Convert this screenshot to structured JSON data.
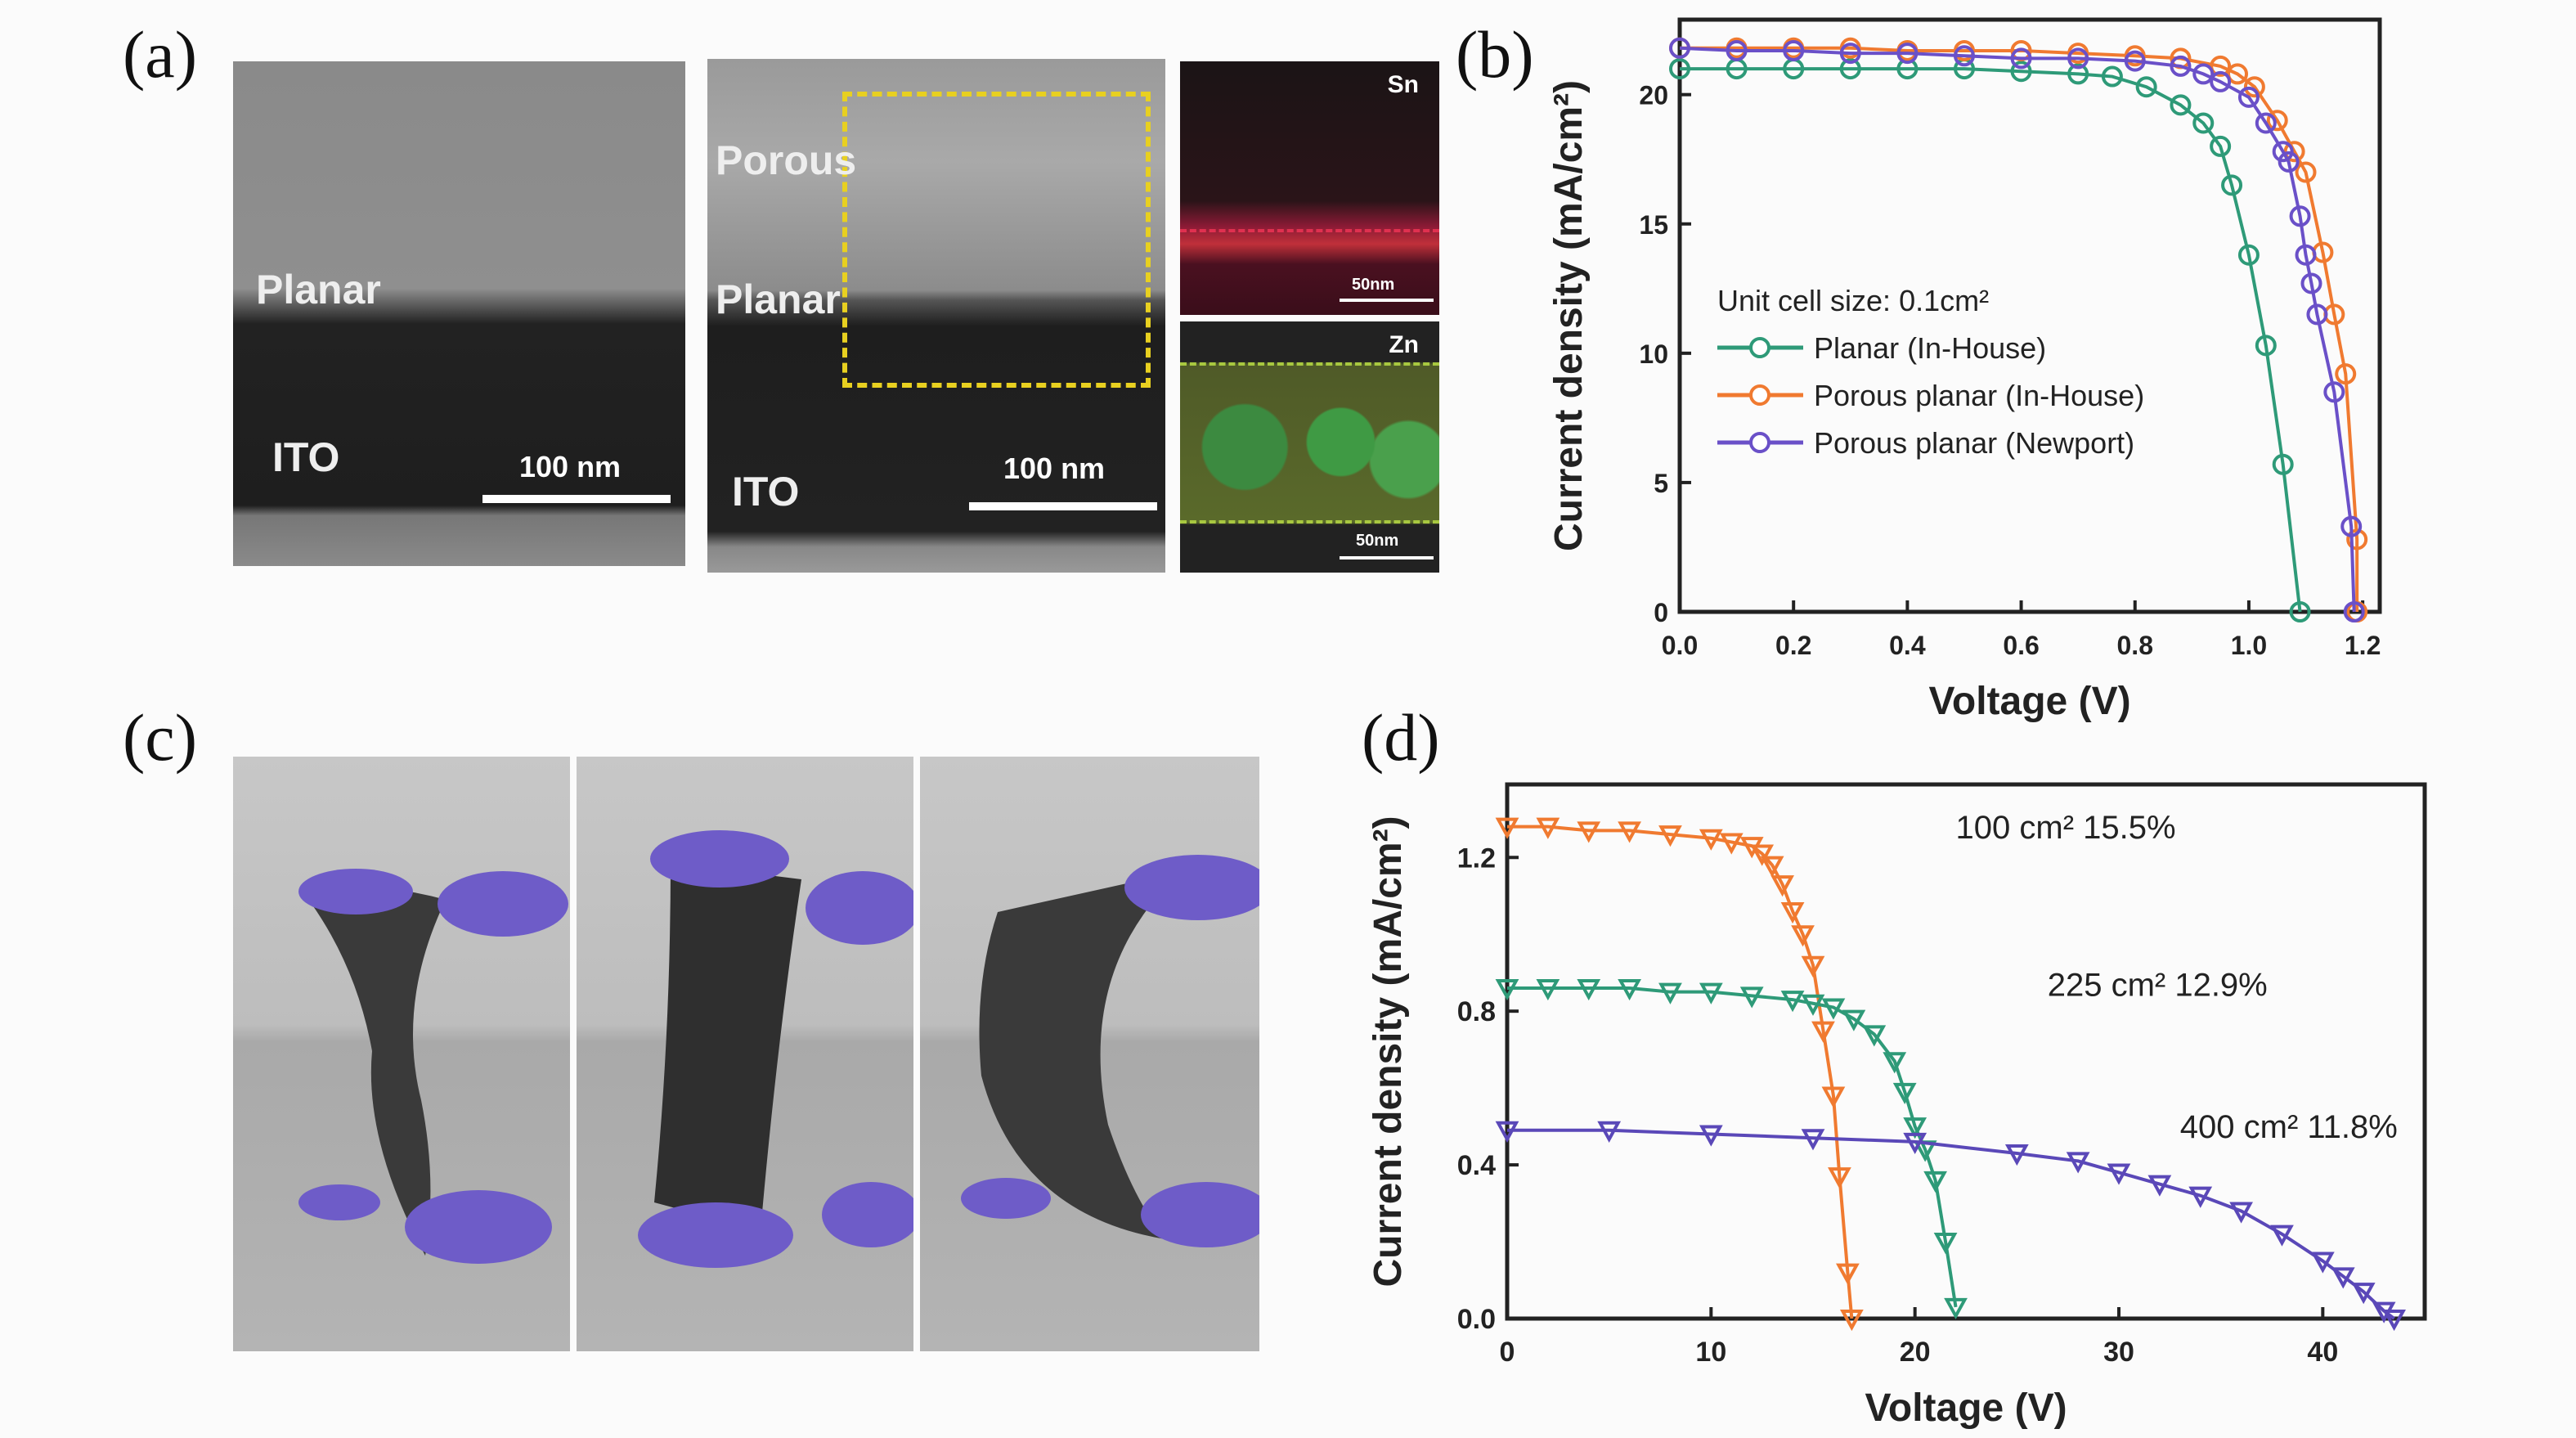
{
  "panels": {
    "a": "(a)",
    "b": "(b)",
    "c": "(c)",
    "d": "(d)"
  },
  "panel_a": {
    "image1": {
      "layer_top": "Planar",
      "layer_bottom": "ITO",
      "scale_bar": "100 nm"
    },
    "image2": {
      "layer_porous": "Porous",
      "layer_top": "Planar",
      "layer_bottom": "ITO",
      "scale_bar": "100 nm",
      "box_color": "#e8d020"
    },
    "map_sn": {
      "element": "Sn",
      "scale_bar": "50nm",
      "color": "#c0303a"
    },
    "map_zn": {
      "element": "Zn",
      "scale_bar": "50nm",
      "color": "#3f9a44"
    }
  },
  "chart_data": [
    {
      "type": "line",
      "panel": "(b)",
      "xlabel": "Voltage (V)",
      "ylabel": "Current density (mA/cm²)",
      "xlim": [
        0,
        1.23
      ],
      "ylim": [
        0,
        22.9
      ],
      "xticks": [
        "0.0",
        "0.2",
        "0.4",
        "0.6",
        "0.8",
        "1.0",
        "1.2"
      ],
      "yticks": [
        "0",
        "5",
        "10",
        "15",
        "20"
      ],
      "legend_title": "Unit cell size: 0.1cm²",
      "legend_position": "center",
      "marker": "open-circle",
      "series": [
        {
          "name": "Planar (In-House)",
          "color": "#2e9a78",
          "x": [
            0,
            0.1,
            0.2,
            0.3,
            0.4,
            0.5,
            0.6,
            0.7,
            0.76,
            0.82,
            0.88,
            0.92,
            0.95,
            0.97,
            1.0,
            1.03,
            1.06,
            1.09
          ],
          "y": [
            21.0,
            21.0,
            21.0,
            21.0,
            21.0,
            21.0,
            20.9,
            20.8,
            20.7,
            20.3,
            19.6,
            18.9,
            18.0,
            16.5,
            13.8,
            10.3,
            5.7,
            0
          ]
        },
        {
          "name": "Porous planar (In-House)",
          "color": "#f07a30",
          "x": [
            0,
            0.1,
            0.2,
            0.3,
            0.4,
            0.5,
            0.6,
            0.7,
            0.8,
            0.88,
            0.95,
            0.98,
            1.01,
            1.05,
            1.08,
            1.1,
            1.13,
            1.15,
            1.17,
            1.19,
            1.19
          ],
          "y": [
            21.8,
            21.8,
            21.8,
            21.8,
            21.7,
            21.7,
            21.7,
            21.6,
            21.5,
            21.4,
            21.1,
            20.8,
            20.3,
            19.0,
            17.8,
            17.0,
            13.9,
            11.5,
            9.2,
            2.8,
            0
          ]
        },
        {
          "name": "Porous planar (Newport)",
          "color": "#6a50c8",
          "x": [
            0,
            0.1,
            0.2,
            0.3,
            0.4,
            0.5,
            0.6,
            0.7,
            0.8,
            0.88,
            0.92,
            0.95,
            1.0,
            1.03,
            1.06,
            1.07,
            1.09,
            1.1,
            1.11,
            1.12,
            1.15,
            1.18,
            1.185
          ],
          "y": [
            21.8,
            21.7,
            21.7,
            21.6,
            21.6,
            21.5,
            21.4,
            21.4,
            21.3,
            21.1,
            20.8,
            20.5,
            19.9,
            18.9,
            17.8,
            17.4,
            15.3,
            13.8,
            12.7,
            11.5,
            8.5,
            3.3,
            0
          ]
        }
      ]
    },
    {
      "type": "line",
      "panel": "(d)",
      "xlabel": "Voltage (V)",
      "ylabel": "Current density (mA/cm²)",
      "xlim": [
        0,
        45
      ],
      "ylim": [
        0,
        1.39
      ],
      "xticks": [
        "0",
        "10",
        "20",
        "30",
        "40"
      ],
      "yticks": [
        "0.0",
        "0.4",
        "0.8",
        "1.2"
      ],
      "marker": "open-triangle-down",
      "series": [
        {
          "label": "100 cm² 15.5%",
          "color": "#f07a30",
          "x": [
            0,
            2,
            4,
            6,
            8,
            10,
            11,
            12,
            12.5,
            13,
            13.5,
            14,
            14.5,
            15,
            15.5,
            16,
            16.3,
            16.7,
            16.9
          ],
          "y": [
            1.28,
            1.28,
            1.27,
            1.27,
            1.26,
            1.25,
            1.24,
            1.23,
            1.21,
            1.18,
            1.13,
            1.06,
            1.0,
            0.92,
            0.75,
            0.58,
            0.37,
            0.12,
            0
          ]
        },
        {
          "label": "225 cm² 12.9%",
          "color": "#2e9a78",
          "x": [
            0,
            2,
            4,
            6,
            8,
            10,
            12,
            14,
            15,
            16,
            17,
            18,
            19,
            19.5,
            20,
            20.5,
            21,
            21.5,
            22
          ],
          "y": [
            0.86,
            0.86,
            0.86,
            0.86,
            0.85,
            0.85,
            0.84,
            0.83,
            0.82,
            0.81,
            0.78,
            0.74,
            0.67,
            0.59,
            0.5,
            0.44,
            0.36,
            0.2,
            0.03
          ]
        },
        {
          "label": "400 cm² 11.8%",
          "color": "#5a48b8",
          "x": [
            0,
            5,
            10,
            15,
            20,
            25,
            28,
            30,
            32,
            34,
            36,
            38,
            40,
            41,
            42,
            43,
            43.5
          ],
          "y": [
            0.49,
            0.49,
            0.48,
            0.47,
            0.46,
            0.43,
            0.41,
            0.38,
            0.35,
            0.32,
            0.28,
            0.22,
            0.15,
            0.11,
            0.07,
            0.02,
            0
          ]
        }
      ]
    }
  ]
}
